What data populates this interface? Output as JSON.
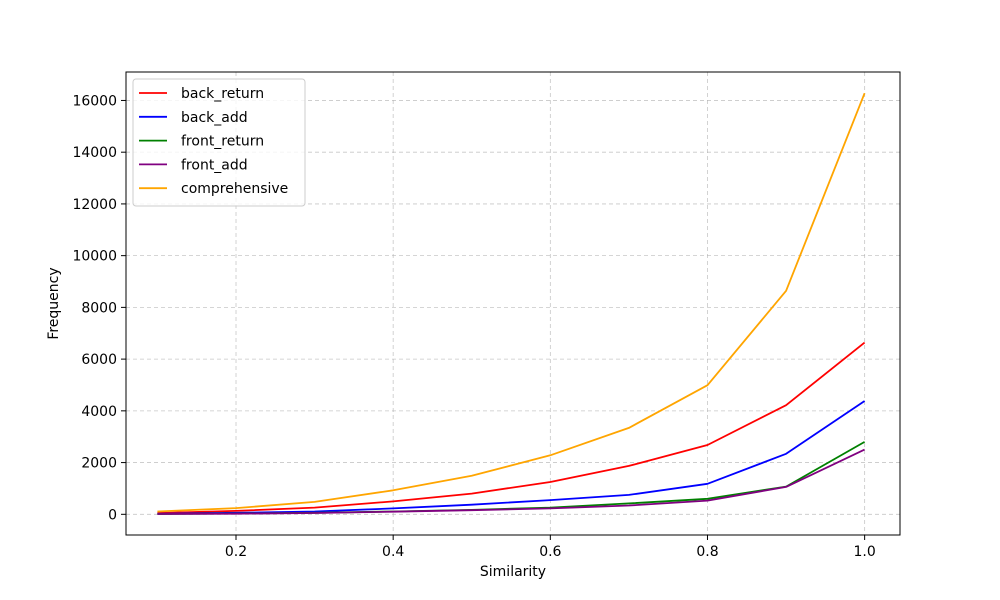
{
  "chart_data": {
    "type": "line",
    "xlabel": "Similarity",
    "ylabel": "Frequency",
    "x": [
      0.1,
      0.2,
      0.3,
      0.4,
      0.5,
      0.6,
      0.7,
      0.8,
      0.9,
      1.0
    ],
    "xlim": [
      0.06,
      1.045
    ],
    "ylim": [
      -800,
      17100
    ],
    "xticks": [
      0.2,
      0.4,
      0.6,
      0.8,
      1.0
    ],
    "xtick_labels": [
      "0.2",
      "0.4",
      "0.6",
      "0.8",
      "1.0"
    ],
    "yticks": [
      0,
      2000,
      4000,
      6000,
      8000,
      10000,
      12000,
      14000,
      16000
    ],
    "ytick_labels": [
      "0",
      "2000",
      "4000",
      "6000",
      "8000",
      "10000",
      "12000",
      "14000",
      "16000"
    ],
    "grid": true,
    "legend_position": "top-left",
    "series": [
      {
        "name": "back_return",
        "color": "#ff0000",
        "values": [
          50,
          130,
          260,
          500,
          800,
          1250,
          1870,
          2680,
          4220,
          6640
        ]
      },
      {
        "name": "back_add",
        "color": "#0000ff",
        "values": [
          20,
          60,
          110,
          230,
          370,
          550,
          750,
          1180,
          2340,
          4380
        ]
      },
      {
        "name": "front_return",
        "color": "#008000",
        "values": [
          10,
          30,
          60,
          110,
          170,
          260,
          420,
          600,
          1070,
          2800
        ]
      },
      {
        "name": "front_add",
        "color": "#800080",
        "values": [
          10,
          25,
          50,
          100,
          160,
          230,
          340,
          530,
          1060,
          2500
        ]
      },
      {
        "name": "comprehensive",
        "color": "#ffa500",
        "values": [
          110,
          240,
          480,
          930,
          1490,
          2280,
          3340,
          4990,
          8640,
          16280
        ]
      }
    ]
  }
}
